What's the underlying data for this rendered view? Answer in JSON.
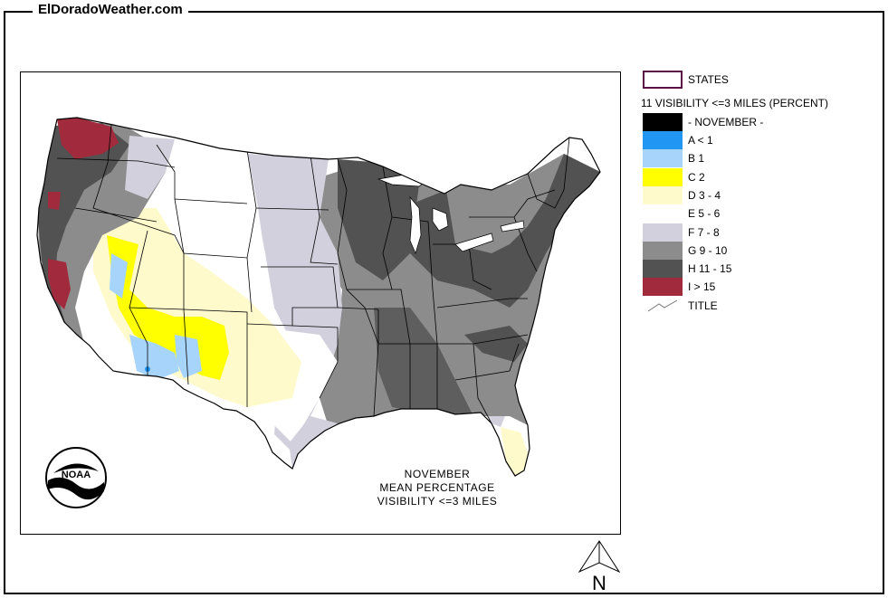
{
  "site_title": "ElDoradoWeather.com",
  "map_caption": {
    "line1": "NOVEMBER",
    "line2": "MEAN PERCENTAGE",
    "line3": "VISIBILITY <=3 MILES"
  },
  "logo_text": "NOAA",
  "north_label": "N",
  "legend": {
    "states_label": "STATES",
    "layer_title": "11 VISIBILITY <=3 MILES (PERCENT)",
    "month_label": "- NOVEMBER -",
    "classes": [
      {
        "label": "A < 1",
        "color": "#2196f3"
      },
      {
        "label": "B 1",
        "color": "#a7d4fb"
      },
      {
        "label": "C 2",
        "color": "#ffff00"
      },
      {
        "label": "D 3 - 4",
        "color": "#fffacc"
      },
      {
        "label": "E 5 - 6",
        "color": "#ffffff"
      },
      {
        "label": "F 7 - 8",
        "color": "#d3d0dd"
      },
      {
        "label": "G 9 - 10",
        "color": "#8c8c8c"
      },
      {
        "label": "H 11 - 15",
        "color": "#525252"
      },
      {
        "label": "I > 15",
        "color": "#a12b3d"
      }
    ],
    "title_label": "TITLE",
    "states_outline_color": "#5b1049",
    "month_swatch_color": "#000000"
  }
}
